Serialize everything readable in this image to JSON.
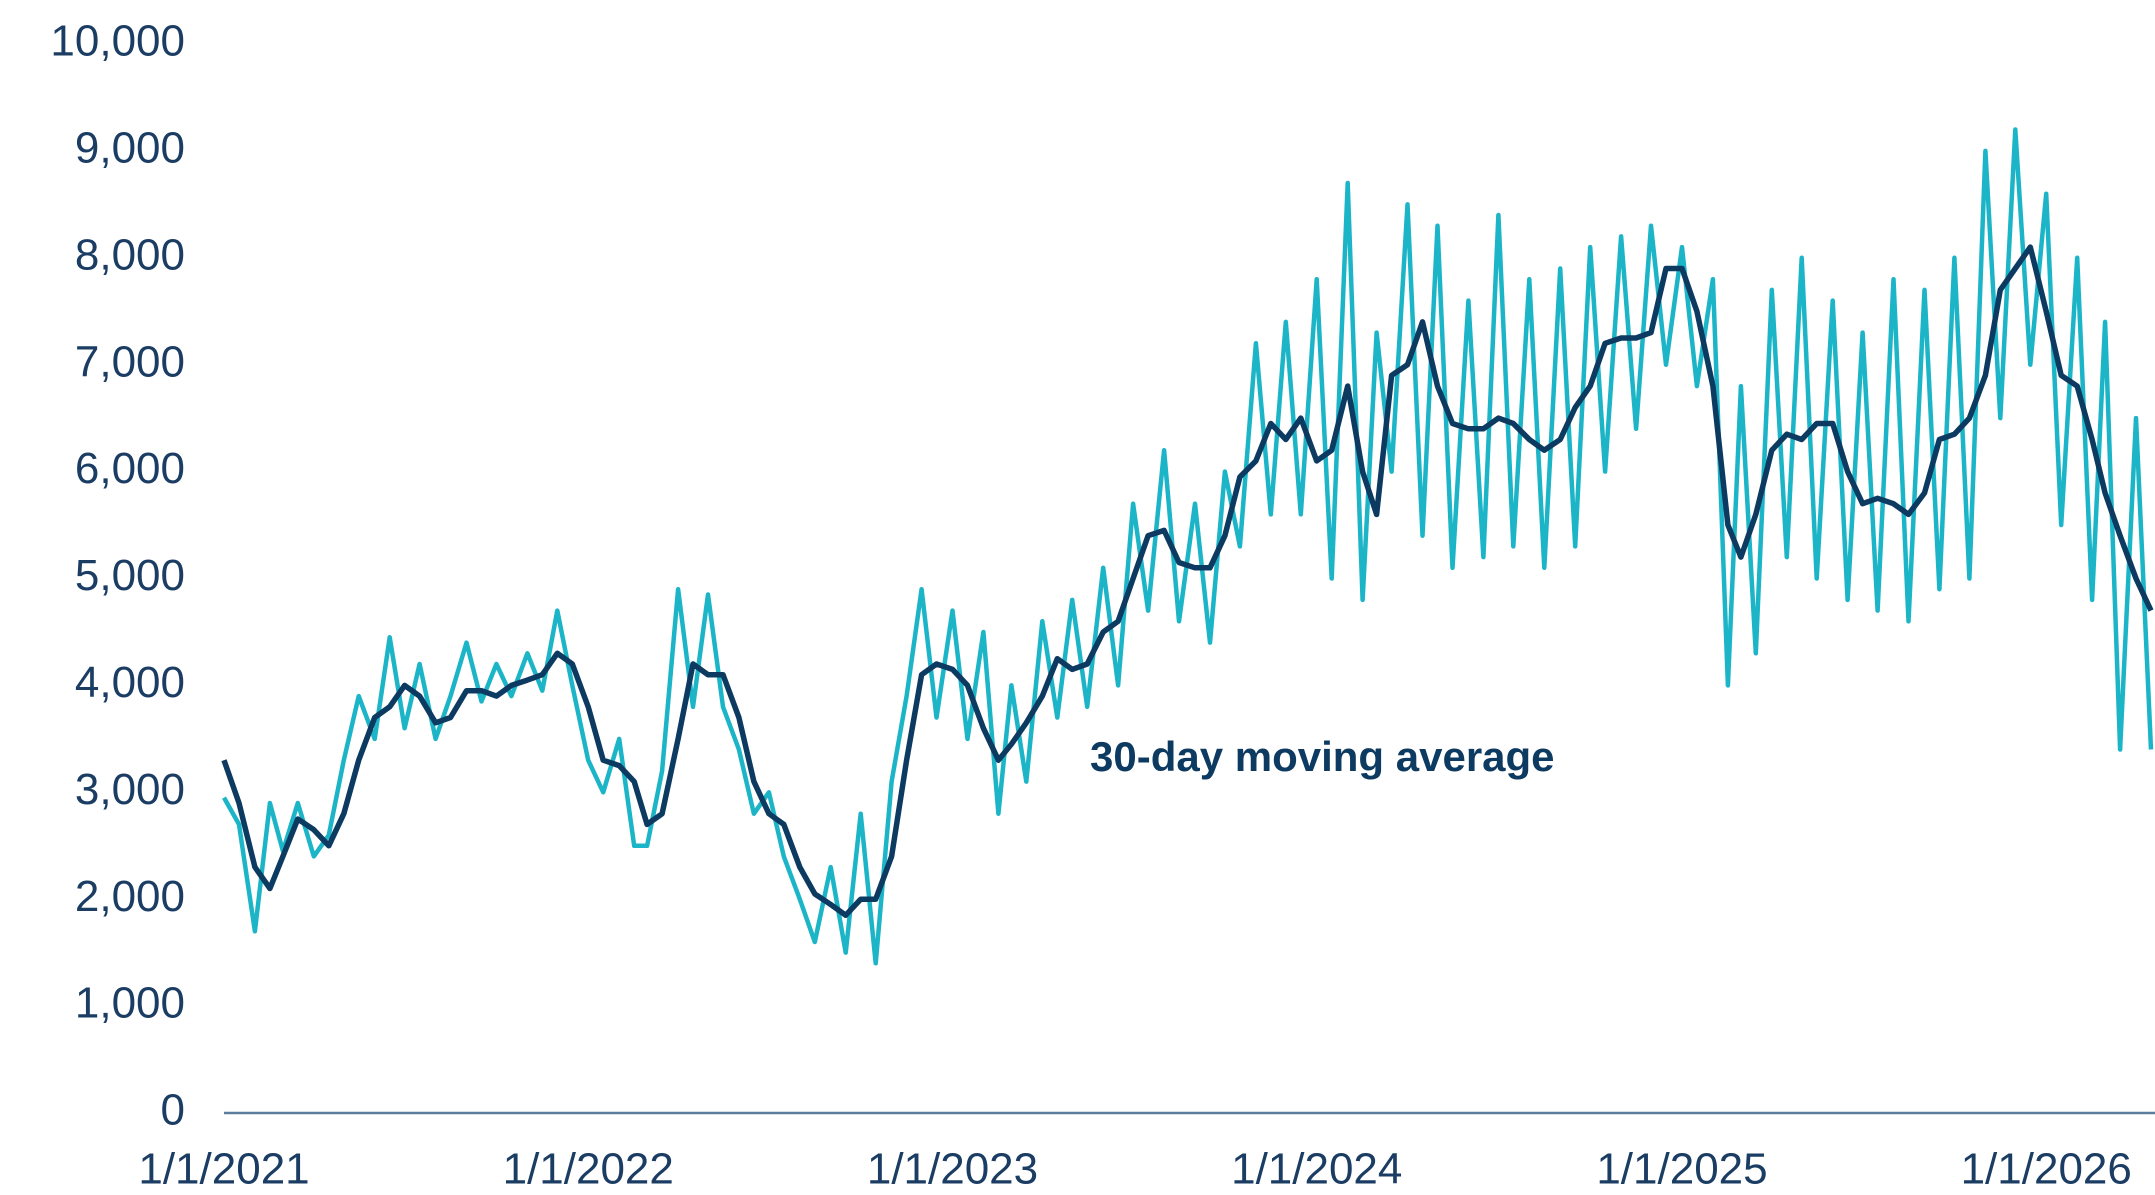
{
  "chart_data": {
    "type": "line",
    "annotation": "30-day moving average",
    "x": [
      "2021-01-01",
      "2021-01-16",
      "2021-02-01",
      "2021-02-16",
      "2021-03-01",
      "2021-03-16",
      "2021-04-01",
      "2021-04-16",
      "2021-05-01",
      "2021-05-16",
      "2021-06-01",
      "2021-06-16",
      "2021-07-01",
      "2021-07-16",
      "2021-08-01",
      "2021-08-16",
      "2021-09-01",
      "2021-09-16",
      "2021-10-01",
      "2021-10-16",
      "2021-11-01",
      "2021-11-16",
      "2021-12-01",
      "2021-12-16",
      "2022-01-01",
      "2022-01-16",
      "2022-02-01",
      "2022-02-16",
      "2022-03-01",
      "2022-03-16",
      "2022-04-01",
      "2022-04-16",
      "2022-05-01",
      "2022-05-16",
      "2022-06-01",
      "2022-06-16",
      "2022-07-01",
      "2022-07-16",
      "2022-08-01",
      "2022-08-16",
      "2022-09-01",
      "2022-09-16",
      "2022-10-01",
      "2022-10-16",
      "2022-11-01",
      "2022-11-16",
      "2022-12-01",
      "2022-12-16",
      "2023-01-01",
      "2023-01-16",
      "2023-02-01",
      "2023-02-16",
      "2023-03-01",
      "2023-03-16",
      "2023-04-01",
      "2023-04-16",
      "2023-05-01",
      "2023-05-16",
      "2023-06-01",
      "2023-06-16",
      "2023-07-01",
      "2023-07-16",
      "2023-08-01",
      "2023-08-16",
      "2023-09-01",
      "2023-09-16",
      "2023-10-01",
      "2023-10-16",
      "2023-11-01",
      "2023-11-16",
      "2023-12-01",
      "2023-12-16",
      "2024-01-01",
      "2024-01-16",
      "2024-02-01",
      "2024-02-16",
      "2024-03-01",
      "2024-03-16",
      "2024-04-01",
      "2024-04-16",
      "2024-05-01",
      "2024-05-16",
      "2024-06-01",
      "2024-06-16",
      "2024-07-01",
      "2024-07-16",
      "2024-08-01",
      "2024-08-16",
      "2024-09-01",
      "2024-09-16",
      "2024-10-01",
      "2024-10-16",
      "2024-11-01",
      "2024-11-16",
      "2024-12-01",
      "2024-12-16",
      "2025-01-01",
      "2025-01-16",
      "2025-02-01",
      "2025-02-16",
      "2025-03-01",
      "2025-03-16",
      "2025-04-01",
      "2025-04-16",
      "2025-05-01",
      "2025-05-16",
      "2025-06-01",
      "2025-06-16",
      "2025-07-01",
      "2025-07-16",
      "2025-08-01",
      "2025-08-16",
      "2025-09-01",
      "2025-09-16",
      "2025-10-01",
      "2025-10-16",
      "2025-11-01",
      "2025-11-16",
      "2025-12-01",
      "2025-12-16",
      "2026-01-01",
      "2026-01-16",
      "2026-02-01",
      "2026-02-16",
      "2026-03-01",
      "2026-03-16",
      "2026-04-01",
      "2026-04-16"
    ],
    "series": [
      {
        "color": "#1cb5c8",
        "values": [
          2950,
          2700,
          1700,
          2900,
          2450,
          2900,
          2400,
          2600,
          3300,
          3900,
          3500,
          4450,
          3600,
          4200,
          3500,
          3900,
          4400,
          3850,
          4200,
          3900,
          4300,
          3950,
          4700,
          4000,
          3300,
          3000,
          3500,
          2500,
          2500,
          3200,
          4900,
          3800,
          4850,
          3800,
          3400,
          2800,
          3000,
          2400,
          2000,
          1600,
          2300,
          1500,
          2800,
          1400,
          3100,
          3900,
          4900,
          3700,
          4700,
          3500,
          4500,
          2800,
          4000,
          3100,
          4600,
          3700,
          4800,
          3800,
          5100,
          4000,
          5700,
          4700,
          6200,
          4600,
          5700,
          4400,
          6000,
          5300,
          7200,
          5600,
          7400,
          5600,
          7800,
          5000,
          8700,
          4800,
          7300,
          6000,
          8500,
          5400,
          8300,
          5100,
          7600,
          5200,
          8400,
          5300,
          7800,
          5100,
          7900,
          5300,
          8100,
          6000,
          8200,
          6400,
          8300,
          7000,
          8100,
          6800,
          7800,
          4000,
          6800,
          4300,
          7700,
          5200,
          8000,
          5000,
          7600,
          4800,
          7300,
          4700,
          7800,
          4600,
          7700,
          4900,
          8000,
          5000,
          9000,
          6500,
          9200,
          7000,
          8600,
          5500,
          8000,
          4800,
          7400,
          3400,
          6500,
          3400
        ]
      },
      {
        "name": "30-day moving average",
        "color": "#0d3a61",
        "values": [
          3300,
          2900,
          2300,
          2100,
          2400,
          2750,
          2650,
          2500,
          2800,
          3300,
          3700,
          3800,
          4000,
          3900,
          3650,
          3700,
          3950,
          3950,
          3900,
          4000,
          4050,
          4100,
          4300,
          4200,
          3800,
          3300,
          3250,
          3100,
          2700,
          2800,
          3500,
          4200,
          4100,
          4100,
          3700,
          3100,
          2800,
          2700,
          2300,
          2050,
          1950,
          1850,
          2000,
          2000,
          2400,
          3300,
          4100,
          4200,
          4150,
          4000,
          3600,
          3300,
          3450,
          3650,
          3900,
          4250,
          4150,
          4200,
          4500,
          4600,
          5000,
          5400,
          5450,
          5150,
          5100,
          5100,
          5400,
          5950,
          6100,
          6450,
          6300,
          6500,
          6100,
          6200,
          6800,
          6000,
          5600,
          6900,
          7000,
          7400,
          6800,
          6450,
          6400,
          6400,
          6500,
          6450,
          6300,
          6200,
          6300,
          6600,
          6800,
          7200,
          7250,
          7250,
          7300,
          7900,
          7900,
          7500,
          6800,
          5500,
          5200,
          5600,
          6200,
          6350,
          6300,
          6450,
          6450,
          6000,
          5700,
          5750,
          5700,
          5600,
          5800,
          6300,
          6350,
          6500,
          6900,
          7700,
          7900,
          8100,
          7500,
          6900,
          6800,
          6300,
          5800,
          5400,
          5000,
          4700
        ]
      }
    ],
    "xlim": [
      "2021-01-01",
      "2026-04-20"
    ],
    "xticks": [
      {
        "value": "2021-01-01",
        "label": "1/1/2021"
      },
      {
        "value": "2022-01-01",
        "label": "1/1/2022"
      },
      {
        "value": "2023-01-01",
        "label": "1/1/2023"
      },
      {
        "value": "2024-01-01",
        "label": "1/1/2024"
      },
      {
        "value": "2025-01-01",
        "label": "1/1/2025"
      },
      {
        "value": "2026-01-01",
        "label": "1/1/2026"
      }
    ],
    "ylim": [
      0,
      10000
    ],
    "yticks": [
      0,
      {
        "value": 1000,
        "label": "1,000"
      },
      {
        "value": 2000,
        "label": "2,000"
      },
      {
        "value": 3000,
        "label": "3,000"
      },
      {
        "value": 4000,
        "label": "4,000"
      },
      {
        "value": 5000,
        "label": "5,000"
      },
      {
        "value": 6000,
        "label": "6,000"
      },
      {
        "value": 7000,
        "label": "7,000"
      },
      {
        "value": 8000,
        "label": "8,000"
      },
      {
        "value": 9000,
        "label": "9,000"
      },
      {
        "value": 10000,
        "label": "10,000"
      }
    ],
    "grid": false
  }
}
